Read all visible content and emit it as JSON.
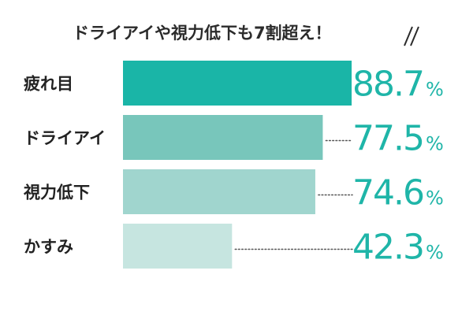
{
  "chart_data": {
    "type": "bar",
    "orientation": "horizontal",
    "title": "ドライアイや視力低下も7割超え！",
    "categories": [
      "疲れ目",
      "ドライアイ",
      "視力低下",
      "かすみ"
    ],
    "values": [
      88.7,
      77.5,
      74.6,
      42.3
    ],
    "unit": "%",
    "xlim": [
      0,
      100
    ],
    "grid": false,
    "bar_colors": [
      "#1ab5a7",
      "#78c6bb",
      "#a0d5ce",
      "#c6e5e0"
    ],
    "label_color": "#1fb5a8",
    "title_color": "#2b2b2b"
  }
}
